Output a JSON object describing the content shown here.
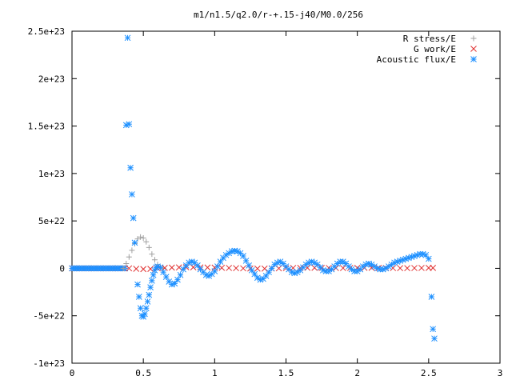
{
  "chart_data": {
    "type": "scatter",
    "title": "m1/n1.5/q2.0/r-+.15-j40/M0.0/256",
    "xlabel": "",
    "ylabel": "",
    "xlim": [
      0,
      3
    ],
    "ylim": [
      -1e+23,
      2.5e+23
    ],
    "x_ticks": [
      0,
      0.5,
      1,
      1.5,
      2,
      2.5,
      3
    ],
    "x_tick_labels": [
      "0",
      "0.5",
      "1",
      "1.5",
      "2",
      "2.5",
      "3"
    ],
    "y_ticks": [
      -1e+23,
      -5e+22,
      0,
      5e+22,
      1e+23,
      1.5e+23,
      2e+23,
      2.5e+23
    ],
    "y_tick_labels": [
      "-1e+23",
      "-5e+22",
      "0",
      "5e+22",
      "1e+23",
      "1.5e+23",
      "2e+23",
      "2.5e+23"
    ],
    "grid": false,
    "legend_position": "top-right",
    "series": [
      {
        "name": "R stress/E",
        "marker": "plus",
        "color": "#a0a0a0",
        "x": [
          0.36,
          0.38,
          0.4,
          0.42,
          0.44,
          0.46,
          0.48,
          0.5,
          0.52,
          0.54,
          0.56,
          0.58,
          0.6,
          0.62,
          0.64
        ],
        "y": [
          0,
          5e+21,
          1.2e+22,
          1.9e+22,
          2.6e+22,
          3.1e+22,
          3.3e+22,
          3.2e+22,
          2.8e+22,
          2.2e+22,
          1.5e+22,
          9e+21,
          4e+21,
          1e+21,
          0
        ]
      },
      {
        "name": "G work/E",
        "marker": "cross",
        "color": "#e03030",
        "x": [
          0.4,
          0.45,
          0.5,
          0.55,
          0.6,
          0.65,
          0.7,
          0.75,
          0.8,
          0.85,
          0.9,
          0.95,
          1.0,
          1.05,
          1.1,
          1.15,
          1.2,
          1.25,
          1.3,
          1.35,
          1.4,
          1.45,
          1.5,
          1.55,
          1.6,
          1.65,
          1.7,
          1.75,
          1.8,
          1.85,
          1.9,
          1.95,
          2.0,
          2.05,
          2.1,
          2.15,
          2.2,
          2.25,
          2.3,
          2.35,
          2.4,
          2.45,
          2.5,
          2.53
        ],
        "y": [
          0,
          -5e+20,
          -8e+20,
          -6e+20,
          0,
          5e+20,
          8e+20,
          1e+21,
          1.2e+21,
          1.1e+21,
          1e+21,
          9e+20,
          8e+20,
          6e+20,
          4e+20,
          2e+20,
          0,
          -2e+20,
          -3e+20,
          -3e+20,
          -2e+20,
          0,
          2e+20,
          4e+20,
          5e+20,
          6e+20,
          6e+20,
          5e+20,
          4e+20,
          3e+20,
          3e+20,
          4e+20,
          5e+20,
          6e+20,
          6e+20,
          5e+20,
          4e+20,
          3e+20,
          2e+20,
          2e+20,
          3e+20,
          4e+20,
          5e+20,
          5e+20
        ]
      },
      {
        "name": "Acoustic flux/E",
        "marker": "star",
        "color": "#1e90ff",
        "x": [
          0.38,
          0.39,
          0.4,
          0.41,
          0.42,
          0.43,
          0.44,
          0.46,
          0.47,
          0.48,
          0.49,
          0.5,
          0.51,
          0.52,
          0.53,
          0.54,
          0.55,
          0.56,
          0.57,
          0.58,
          0.59,
          0.6,
          0.62,
          0.64,
          0.66,
          0.68,
          0.7,
          0.72,
          0.74,
          0.76,
          0.78,
          0.8,
          0.82,
          0.84,
          0.86,
          0.88,
          0.9,
          0.92,
          0.94,
          0.96,
          0.98,
          1.0,
          1.02,
          1.04,
          1.06,
          1.08,
          1.1,
          1.12,
          1.14,
          1.16,
          1.18,
          1.2,
          1.22,
          1.24,
          1.26,
          1.28,
          1.3,
          1.32,
          1.34,
          1.36,
          1.38,
          1.4,
          1.42,
          1.44,
          1.46,
          1.48,
          1.5,
          1.52,
          1.54,
          1.56,
          1.58,
          1.6,
          1.62,
          1.64,
          1.66,
          1.68,
          1.7,
          1.72,
          1.74,
          1.76,
          1.78,
          1.8,
          1.82,
          1.84,
          1.86,
          1.88,
          1.9,
          1.92,
          1.94,
          1.96,
          1.98,
          2.0,
          2.02,
          2.04,
          2.06,
          2.08,
          2.1,
          2.12,
          2.14,
          2.16,
          2.18,
          2.2,
          2.22,
          2.24,
          2.26,
          2.28,
          2.3,
          2.32,
          2.34,
          2.36,
          2.38,
          2.4,
          2.42,
          2.44,
          2.46,
          2.48,
          2.5,
          2.52,
          2.53,
          2.54
        ],
        "y": [
          1.51e+23,
          2.43e+23,
          1.52e+23,
          1.06e+23,
          7.8e+22,
          5.3e+22,
          2.7e+22,
          -1.7e+22,
          -3e+22,
          -4.2e+22,
          -5e+22,
          -5.1e+22,
          -4.8e+22,
          -4.2e+22,
          -3.5e+22,
          -2.8e+22,
          -2e+22,
          -1.3e+22,
          -7e+21,
          -2e+21,
          1e+21,
          2e+21,
          1e+21,
          -4e+21,
          -9e+21,
          -1.4e+22,
          -1.7e+22,
          -1.6e+22,
          -1.2e+22,
          -7e+21,
          -1e+21,
          3e+21,
          6e+21,
          7e+21,
          6e+21,
          3e+21,
          -1e+21,
          -4e+21,
          -7e+21,
          -8e+21,
          -6e+21,
          -3e+21,
          2e+21,
          7e+21,
          1.1e+22,
          1.4e+22,
          1.6e+22,
          1.8e+22,
          1.85e+22,
          1.8e+22,
          1.6e+22,
          1.3e+22,
          8e+21,
          3e+21,
          -2e+21,
          -6e+21,
          -1e+22,
          -1.2e+22,
          -1.1e+22,
          -8e+21,
          -4e+21,
          0,
          4e+21,
          6e+21,
          7e+21,
          5e+21,
          2e+21,
          -1e+21,
          -4e+21,
          -5e+21,
          -4e+21,
          -2e+21,
          1e+21,
          4e+21,
          6e+21,
          7e+21,
          6e+21,
          4e+21,
          1e+21,
          -2e+21,
          -3e+21,
          -3e+21,
          -1e+21,
          2e+21,
          5e+21,
          7e+21,
          7e+21,
          5e+21,
          2e+21,
          -1e+21,
          -3e+21,
          -3e+21,
          -1e+21,
          2e+21,
          4e+21,
          5e+21,
          4e+21,
          2e+21,
          0,
          -1e+21,
          -1e+21,
          0,
          2e+21,
          4e+21,
          6e+21,
          7e+21,
          8e+21,
          9e+21,
          1e+22,
          1.1e+22,
          1.2e+22,
          1.3e+22,
          1.4e+22,
          1.5e+22,
          1.5e+22,
          1.4e+22,
          1e+22,
          -3e+22,
          -6.4e+22,
          -7.4e+22
        ]
      }
    ]
  }
}
